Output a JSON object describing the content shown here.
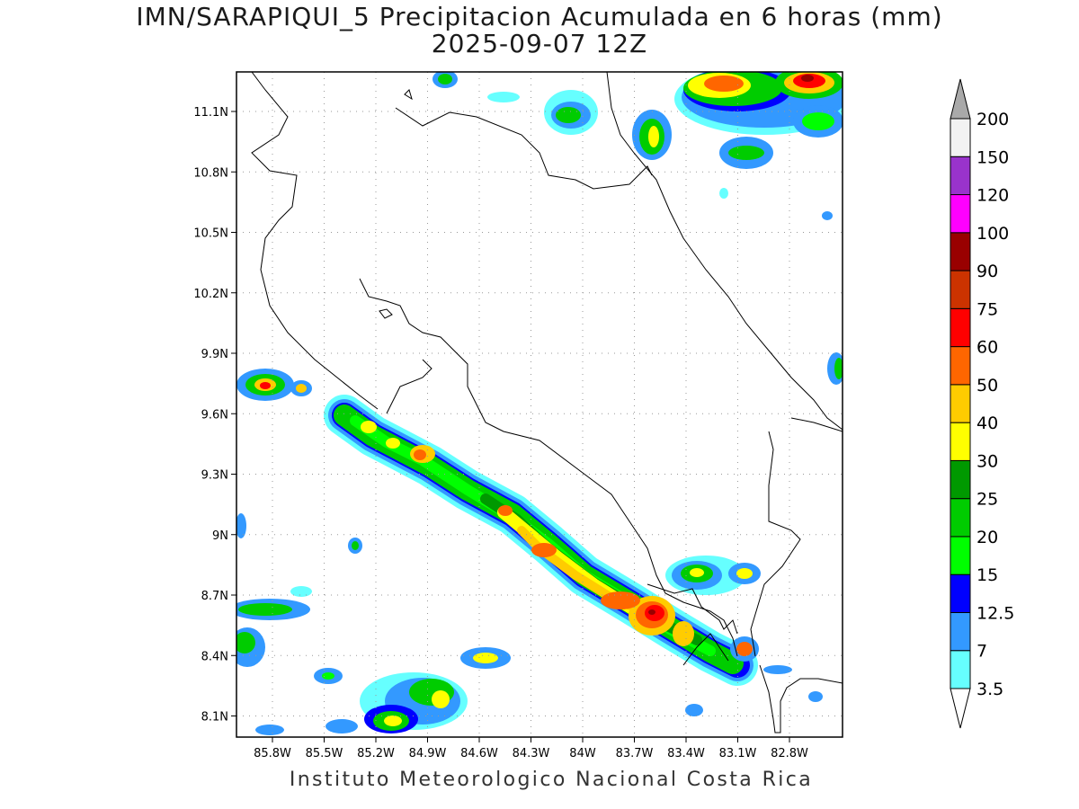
{
  "title": {
    "line1": "IMN/SARAPIQUI_5 Precipitacion Acumulada en 6 horas (mm)",
    "line2": "2025-09-07 12Z"
  },
  "footer": "Instituto Meteorologico Nacional Costa Rica",
  "axes": {
    "x_ticks": [
      "85.8W",
      "85.5W",
      "85.2W",
      "84.9W",
      "84.6W",
      "84.3W",
      "84W",
      "83.7W",
      "83.4W",
      "83.1W",
      "82.8W"
    ],
    "y_ticks": [
      "11.1N",
      "10.8N",
      "10.5N",
      "10.2N",
      "9.9N",
      "9.6N",
      "9.3N",
      "9N",
      "8.7N",
      "8.4N",
      "8.1N"
    ]
  },
  "colorbar": {
    "labels": [
      "3.5",
      "7",
      "12.5",
      "15",
      "20",
      "25",
      "30",
      "40",
      "50",
      "60",
      "75",
      "90",
      "100",
      "120",
      "150",
      "200"
    ],
    "colors": [
      "#66ffff",
      "#3399ff",
      "#0000ff",
      "#00ff00",
      "#00cc00",
      "#009900",
      "#ffff00",
      "#ffcc00",
      "#ff6600",
      "#ff0000",
      "#cc3300",
      "#990000",
      "#ff00ff",
      "#9933cc",
      "#f2f2f2"
    ],
    "over_color": "#a9a9a9",
    "under_color": "#ffffff"
  }
}
